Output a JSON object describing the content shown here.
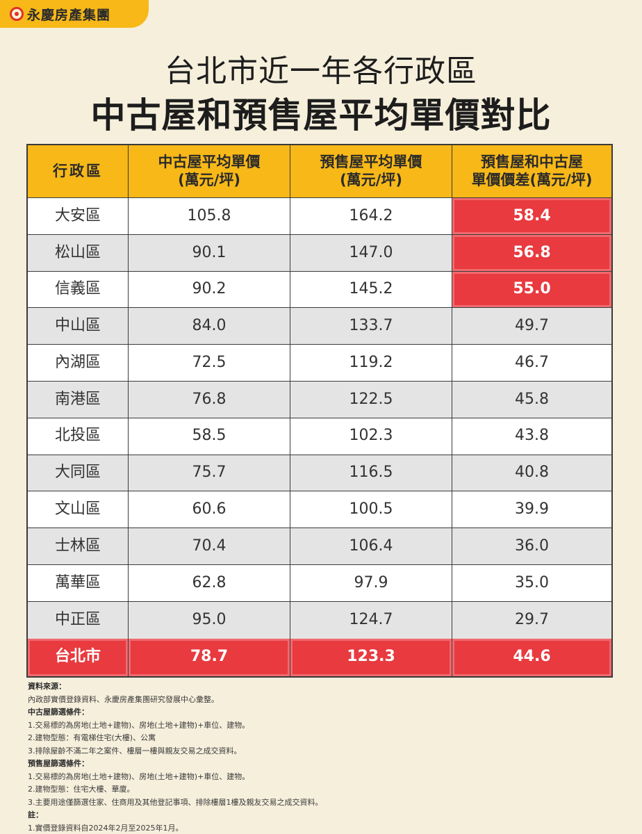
{
  "brand": {
    "name": "永慶房產集團",
    "logo_icon": "brand-logo-icon"
  },
  "title": {
    "line1": "台北市近一年各行政區",
    "line2": "中古屋和預售屋平均單價對比"
  },
  "table": {
    "headers": [
      "行政區",
      "中古屋平均單價\n(萬元/坪)",
      "預售屋平均單價\n(萬元/坪)",
      "預售屋和中古屋\n單價價差(萬元/坪)"
    ],
    "rows": [
      {
        "district": "大安區",
        "used": "105.8",
        "presale": "164.2",
        "diff": "58.4",
        "highlight": true
      },
      {
        "district": "松山區",
        "used": "90.1",
        "presale": "147.0",
        "diff": "56.8",
        "highlight": true
      },
      {
        "district": "信義區",
        "used": "90.2",
        "presale": "145.2",
        "diff": "55.0",
        "highlight": true
      },
      {
        "district": "中山區",
        "used": "84.0",
        "presale": "133.7",
        "diff": "49.7",
        "highlight": false
      },
      {
        "district": "內湖區",
        "used": "72.5",
        "presale": "119.2",
        "diff": "46.7",
        "highlight": false
      },
      {
        "district": "南港區",
        "used": "76.8",
        "presale": "122.5",
        "diff": "45.8",
        "highlight": false
      },
      {
        "district": "北投區",
        "used": "58.5",
        "presale": "102.3",
        "diff": "43.8",
        "highlight": false
      },
      {
        "district": "大同區",
        "used": "75.7",
        "presale": "116.5",
        "diff": "40.8",
        "highlight": false
      },
      {
        "district": "文山區",
        "used": "60.6",
        "presale": "100.5",
        "diff": "39.9",
        "highlight": false
      },
      {
        "district": "士林區",
        "used": "70.4",
        "presale": "106.4",
        "diff": "36.0",
        "highlight": false
      },
      {
        "district": "萬華區",
        "used": "62.8",
        "presale": "97.9",
        "diff": "35.0",
        "highlight": false
      },
      {
        "district": "中正區",
        "used": "95.0",
        "presale": "124.7",
        "diff": "29.7",
        "highlight": false
      }
    ],
    "total": {
      "district": "台北市",
      "used": "78.7",
      "presale": "123.3",
      "diff": "44.6"
    }
  },
  "notes": [
    {
      "text": "資料來源：",
      "bold": true
    },
    {
      "text": "內政部實價登錄資料、永慶房產集團研究發展中心彙整。",
      "bold": false
    },
    {
      "text": "中古屋篩選條件：",
      "bold": true
    },
    {
      "text": "1.交易標的為房地(土地+建物)、房地(土地+建物)+車位、建物。",
      "bold": false
    },
    {
      "text": "2.建物型態：有電梯住宅(大樓)、公寓",
      "bold": false
    },
    {
      "text": "3.排除屋齡不滿二年之案件、樓層一樓與親友交易之成交資料。",
      "bold": false
    },
    {
      "text": "預售屋篩選條件：",
      "bold": true
    },
    {
      "text": "1.交易標的為房地(土地+建物)、房地(土地+建物)+車位、建物。",
      "bold": false
    },
    {
      "text": "2.建物型態：住宅大樓、華廈。",
      "bold": false
    },
    {
      "text": "3.主要用途僅篩選住家、住商用及其他登記事項、排除樓層1樓及親友交易之成交資料。",
      "bold": false
    },
    {
      "text": "註：",
      "bold": true
    },
    {
      "text": "1.實價登錄資料自2024年2月至2025年1月。",
      "bold": false
    }
  ]
}
